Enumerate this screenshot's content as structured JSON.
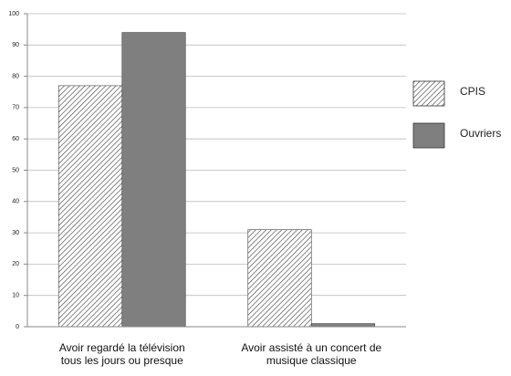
{
  "chart_data": {
    "type": "bar",
    "categories": [
      "Avoir regardé la télévision\ntous les jours ou presque",
      "Avoir assisté à un concert de\nmusique classique"
    ],
    "series": [
      {
        "name": "CPIS",
        "color": "#555555",
        "pattern": "hatch",
        "values": [
          77,
          31
        ]
      },
      {
        "name": "Ouvriers",
        "color": "#7f7f7f",
        "values": [
          94,
          1
        ]
      }
    ],
    "ylim": [
      0,
      100
    ],
    "yticks": [
      0,
      10,
      20,
      30,
      40,
      50,
      60,
      70,
      80,
      90,
      100
    ],
    "grid": true,
    "legend": "right"
  }
}
